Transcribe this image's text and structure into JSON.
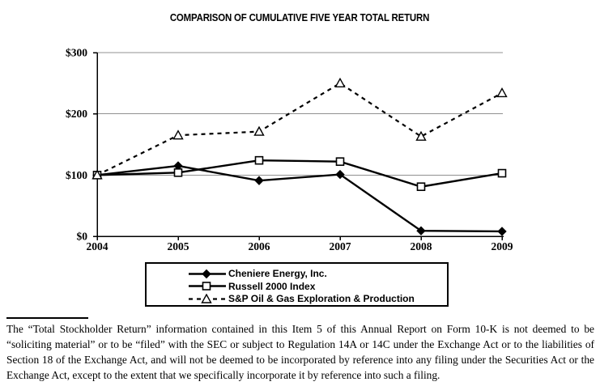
{
  "chart_data": {
    "type": "line",
    "title": "COMPARISON OF CUMULATIVE FIVE YEAR TOTAL RETURN",
    "x": [
      "2004",
      "2005",
      "2006",
      "2007",
      "2008",
      "2009"
    ],
    "series": [
      {
        "name": "Cheniere Energy, Inc.",
        "values": [
          100,
          115,
          91,
          101,
          9,
          8
        ],
        "marker": "diamond-filled",
        "line": "solid"
      },
      {
        "name": "Russell 2000 Index",
        "values": [
          100,
          104,
          124,
          122,
          81,
          103
        ],
        "marker": "square-open",
        "line": "solid"
      },
      {
        "name": "S&P Oil & Gas Exploration & Production",
        "values": [
          100,
          165,
          171,
          250,
          163,
          234
        ],
        "marker": "triangle-open",
        "line": "dashed"
      }
    ],
    "ylim": [
      0,
      300
    ],
    "y_ticks": [
      {
        "value": 0,
        "label": "$0"
      },
      {
        "value": 100,
        "label": "$100"
      },
      {
        "value": 200,
        "label": "$200"
      },
      {
        "value": 300,
        "label": "$300"
      }
    ],
    "grid": true,
    "legend_position": "bottom-center",
    "colors": {
      "series": "#000000",
      "gridline": "#909090",
      "background": "#ffffff"
    }
  },
  "footnote": {
    "text": "The “Total Stockholder Return” information contained in this Item 5 of this Annual Report on Form 10-K is not deemed to be “soliciting material” or to be “filed” with the SEC or subject to Regulation 14A or 14C under the Exchange Act or to the liabilities of Section 18 of the Exchange Act, and will not be deemed to be incorporated by reference into any filing under the Securities Act or the Exchange Act, except to the extent that we specifically incorporate it by reference into such a filing."
  }
}
